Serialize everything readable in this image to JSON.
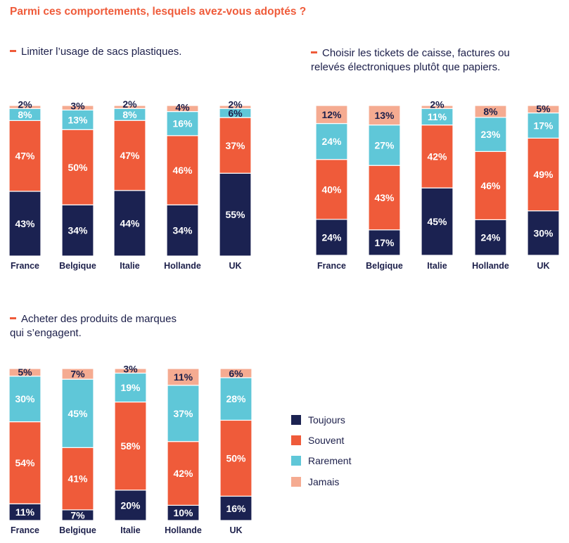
{
  "main_title": "Parmi ces comportements, lesquels avez-vous adoptés ?",
  "colors": {
    "Toujours": "#1b2251",
    "Souvent": "#ef5b3a",
    "Rarement": "#5fc7d8",
    "Jamais": "#f5ab91"
  },
  "legend": [
    "Toujours",
    "Souvent",
    "Rarement",
    "Jamais"
  ],
  "chart_data": [
    {
      "type": "bar",
      "stacked": true,
      "title_lines": [
        "Limiter l’usage de sacs plastiques."
      ],
      "categories": [
        "France",
        "Belgique",
        "Italie",
        "Hollande",
        "UK"
      ],
      "series": [
        {
          "name": "Toujours",
          "values": [
            43,
            34,
            44,
            34,
            55
          ]
        },
        {
          "name": "Souvent",
          "values": [
            47,
            50,
            47,
            46,
            37
          ]
        },
        {
          "name": "Rarement",
          "values": [
            8,
            13,
            8,
            16,
            6
          ]
        },
        {
          "name": "Jamais",
          "values": [
            2,
            3,
            2,
            4,
            2
          ]
        }
      ]
    },
    {
      "type": "bar",
      "stacked": true,
      "title_lines": [
        "Choisir les tickets de caisse, factures ou",
        "relevés électroniques plutôt que papiers."
      ],
      "categories": [
        "France",
        "Belgique",
        "Italie",
        "Hollande",
        "UK"
      ],
      "series": [
        {
          "name": "Toujours",
          "values": [
            24,
            17,
            45,
            24,
            30
          ]
        },
        {
          "name": "Souvent",
          "values": [
            40,
            43,
            42,
            46,
            49
          ]
        },
        {
          "name": "Rarement",
          "values": [
            24,
            27,
            11,
            23,
            17
          ]
        },
        {
          "name": "Jamais",
          "values": [
            12,
            13,
            2,
            8,
            5
          ]
        }
      ]
    },
    {
      "type": "bar",
      "stacked": true,
      "title_lines": [
        "Acheter des produits de marques",
        "qui s’engagent."
      ],
      "categories": [
        "France",
        "Belgique",
        "Italie",
        "Hollande",
        "UK"
      ],
      "series": [
        {
          "name": "Toujours",
          "values": [
            11,
            7,
            20,
            10,
            16
          ]
        },
        {
          "name": "Souvent",
          "values": [
            54,
            41,
            58,
            42,
            50
          ]
        },
        {
          "name": "Rarement",
          "values": [
            30,
            45,
            19,
            37,
            28
          ]
        },
        {
          "name": "Jamais",
          "values": [
            5,
            7,
            3,
            11,
            6
          ]
        }
      ]
    }
  ]
}
